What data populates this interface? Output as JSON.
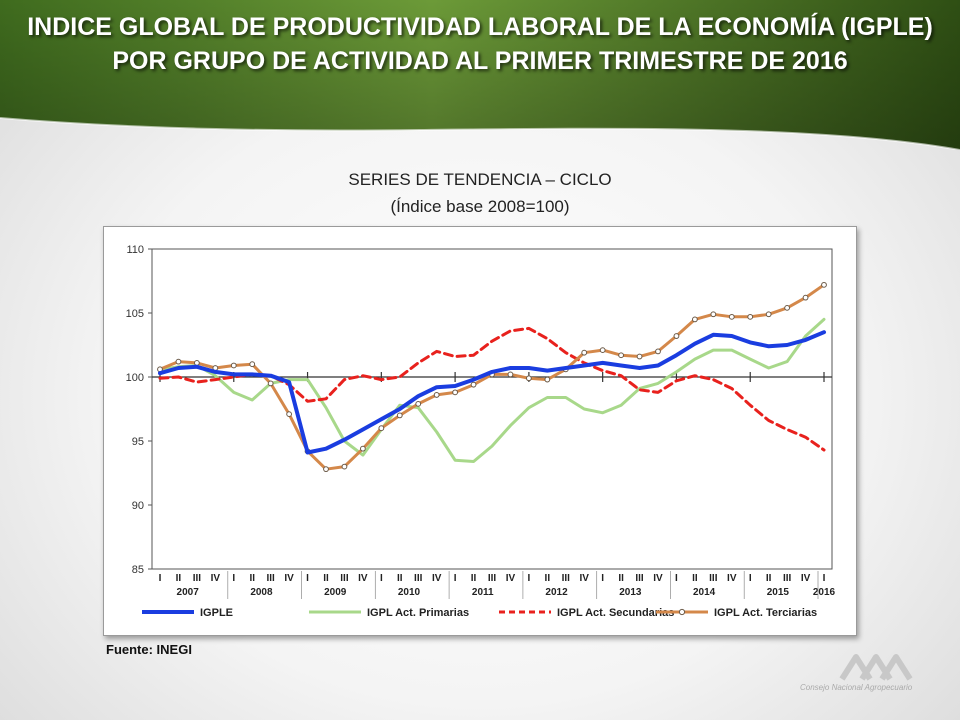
{
  "header": {
    "title_line1": "INDICE GLOBAL DE PRODUCTIVIDAD LABORAL DE LA ECONOMÍA (IGPLE)",
    "title_line2": "POR GRUPO DE ACTIVIDAD AL PRIMER TRIMESTRE DE 2016",
    "band_color": "#5b8a2e"
  },
  "subtitle": {
    "line1": "SERIES DE TENDENCIA – CICLO",
    "line2": "(Índice base 2008=100)"
  },
  "source": "Fuente: INEGI",
  "logo": {
    "name": "cna-logo-icon",
    "caption": "Consejo Nacional Agropecuario"
  },
  "chart_data": {
    "type": "line",
    "ylim": [
      85,
      110
    ],
    "yticks": [
      85,
      90,
      95,
      100,
      105,
      110
    ],
    "grid": false,
    "legend_position": "bottom",
    "quarters": [
      "I",
      "II",
      "III",
      "IV",
      "I",
      "II",
      "III",
      "IV",
      "I",
      "II",
      "III",
      "IV",
      "I",
      "II",
      "III",
      "IV",
      "I",
      "II",
      "III",
      "IV",
      "I",
      "II",
      "III",
      "IV",
      "I",
      "II",
      "III",
      "IV",
      "I",
      "II",
      "III",
      "IV",
      "I",
      "II",
      "III",
      "IV",
      "I"
    ],
    "years": [
      "2007",
      "2008",
      "2009",
      "2010",
      "2011",
      "2012",
      "2013",
      "2014",
      "2015",
      "2016"
    ],
    "x": [
      "2007-I",
      "2007-II",
      "2007-III",
      "2007-IV",
      "2008-I",
      "2008-II",
      "2008-III",
      "2008-IV",
      "2009-I",
      "2009-II",
      "2009-III",
      "2009-IV",
      "2010-I",
      "2010-II",
      "2010-III",
      "2010-IV",
      "2011-I",
      "2011-II",
      "2011-III",
      "2011-IV",
      "2012-I",
      "2012-II",
      "2012-III",
      "2012-IV",
      "2013-I",
      "2013-II",
      "2013-III",
      "2013-IV",
      "2014-I",
      "2014-II",
      "2014-III",
      "2014-IV",
      "2015-I",
      "2015-II",
      "2015-III",
      "2015-IV",
      "2016-I"
    ],
    "series": [
      {
        "name": "IGPLE",
        "color": "#1a3de0",
        "style": "solid",
        "values": [
          100.3,
          100.7,
          100.8,
          100.4,
          100.2,
          100.2,
          100.1,
          99.6,
          94.1,
          94.4,
          95.1,
          95.9,
          96.7,
          97.5,
          98.5,
          99.2,
          99.3,
          99.8,
          100.4,
          100.7,
          100.7,
          100.5,
          100.7,
          100.9,
          101.1,
          100.9,
          100.7,
          100.9,
          101.7,
          102.6,
          103.3,
          103.2,
          102.7,
          102.4,
          102.5,
          102.9,
          103.5
        ]
      },
      {
        "name": "IGPL Act. Primarias",
        "color": "#a8d88a",
        "style": "solid",
        "values": [
          100.6,
          100.8,
          100.9,
          100.1,
          98.8,
          98.2,
          99.5,
          99.8,
          99.8,
          97.6,
          95.0,
          93.9,
          95.9,
          97.8,
          97.6,
          95.7,
          93.5,
          93.4,
          94.6,
          96.2,
          97.6,
          98.4,
          98.4,
          97.5,
          97.2,
          97.8,
          99.1,
          99.5,
          100.4,
          101.4,
          102.1,
          102.1,
          101.4,
          100.7,
          101.2,
          103.2,
          104.5
        ]
      },
      {
        "name": "IGPL Act. Secundarias",
        "color": "#e8211d",
        "style": "dashed",
        "values": [
          99.9,
          100.0,
          99.6,
          99.8,
          100.0,
          100.2,
          100.1,
          99.4,
          98.1,
          98.3,
          99.8,
          100.1,
          99.8,
          100.0,
          101.1,
          102.0,
          101.6,
          101.7,
          102.8,
          103.6,
          103.8,
          103.0,
          101.9,
          101.1,
          100.5,
          100.1,
          99.0,
          98.8,
          99.7,
          100.1,
          99.8,
          99.1,
          97.8,
          96.6,
          95.9,
          95.3,
          94.3
        ]
      },
      {
        "name": "IGPL Act. Terciarias",
        "color": "#d4884a",
        "style": "marker",
        "values": [
          100.6,
          101.2,
          101.1,
          100.7,
          100.9,
          101.0,
          99.5,
          97.1,
          94.2,
          92.8,
          93.0,
          94.4,
          96.0,
          97.0,
          97.9,
          98.6,
          98.8,
          99.4,
          100.2,
          100.2,
          99.9,
          99.8,
          100.6,
          101.9,
          102.1,
          101.7,
          101.6,
          102.0,
          103.2,
          104.5,
          104.9,
          104.7,
          104.7,
          104.9,
          105.4,
          106.2,
          107.2
        ]
      }
    ]
  }
}
